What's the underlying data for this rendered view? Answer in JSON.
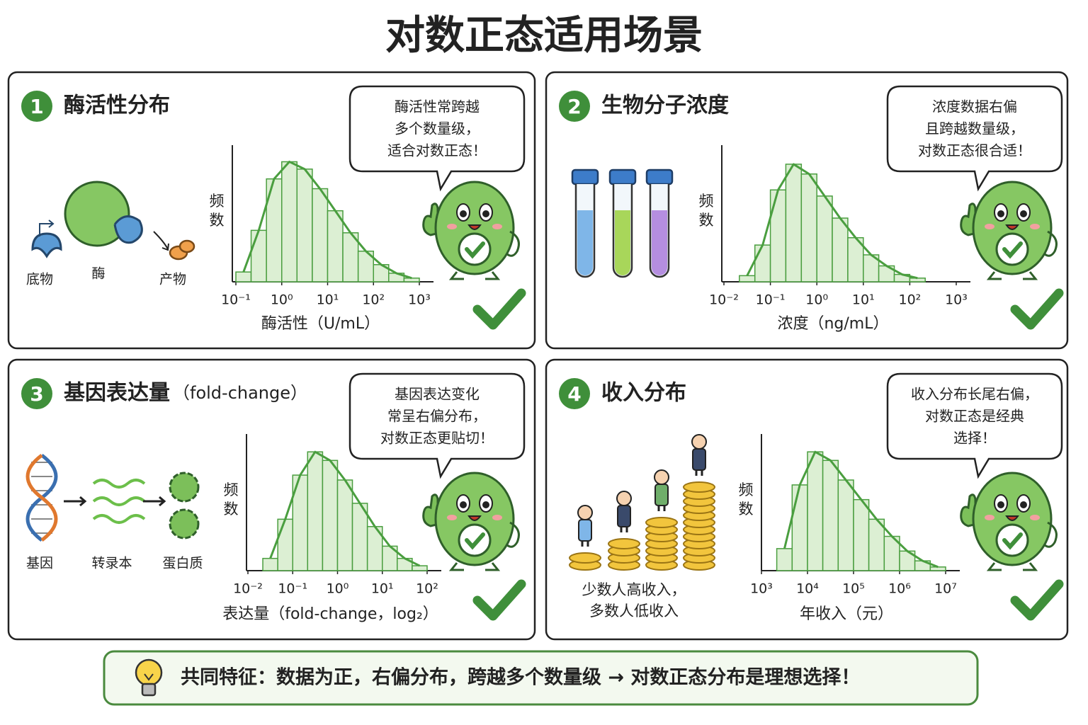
{
  "title": "对数正态适用场景",
  "panels": [
    {
      "number": 1,
      "title": "酶活性分布",
      "bubble": [
        "酶活性常跨越",
        "多个数量级，",
        "适合对数正态！"
      ],
      "labels": [
        "底物",
        "酶",
        "产物"
      ],
      "chart": {
        "type": "histogram",
        "ylabel": "频数",
        "xlabel": "酶活性（U/mL）",
        "xscale": "log",
        "color": "#4a9e3f",
        "xlim": [
          0.1,
          1000
        ],
        "ylim": [
          0,
          100
        ],
        "xticks": [
          {
            "value": 0.1,
            "label": "10⁻¹"
          },
          {
            "value": 1,
            "label": "10⁰"
          },
          {
            "value": 10,
            "label": "10¹"
          },
          {
            "value": 100,
            "label": "10²"
          },
          {
            "value": 1000,
            "label": "10³"
          }
        ],
        "bins": [
          0.1,
          0.215,
          0.464,
          1,
          2.15,
          4.64,
          10,
          21.5,
          46.4,
          100,
          215,
          464,
          1000
        ],
        "counts": [
          8,
          42,
          84,
          98,
          92,
          76,
          58,
          40,
          25,
          14,
          7,
          3
        ]
      }
    },
    {
      "number": 2,
      "title": "生物分子浓度",
      "bubble": [
        "浓度数据右偏",
        "且跨越数量级，",
        "对数正态很合适！"
      ],
      "chart": {
        "type": "histogram",
        "ylabel": "频数",
        "xlabel": "浓度（ng/mL）",
        "xscale": "log",
        "color": "#4a9e3f",
        "xlim": [
          0.01,
          1000
        ],
        "ylim": [
          0,
          100
        ],
        "xticks": [
          {
            "value": 0.01,
            "label": "10⁻²"
          },
          {
            "value": 0.1,
            "label": "10⁻¹"
          },
          {
            "value": 1,
            "label": "10⁰"
          },
          {
            "value": 10,
            "label": "10¹"
          },
          {
            "value": 100,
            "label": "10²"
          },
          {
            "value": 1000,
            "label": "10³"
          }
        ],
        "bins": [
          0.0215,
          0.0464,
          0.1,
          0.215,
          0.464,
          1,
          2.15,
          4.64,
          10,
          21.5,
          46.4,
          100,
          215
        ],
        "counts": [
          5,
          30,
          75,
          96,
          88,
          70,
          52,
          36,
          22,
          13,
          6,
          3
        ]
      }
    },
    {
      "number": 3,
      "title": "基因表达量",
      "title_note": "（fold-change）",
      "bubble": [
        "基因表达变化",
        "常呈右偏分布，",
        "对数正态更贴切！"
      ],
      "labels": [
        "基因",
        "转录本",
        "蛋白质"
      ],
      "chart": {
        "type": "histogram",
        "ylabel": "频数",
        "xlabel": "表达量（fold-change，log₂）",
        "xscale": "log",
        "color": "#4a9e3f",
        "xlim": [
          0.01,
          100
        ],
        "ylim": [
          0,
          100
        ],
        "xticks": [
          {
            "value": 0.01,
            "label": "10⁻²"
          },
          {
            "value": 0.1,
            "label": "10⁻¹"
          },
          {
            "value": 1,
            "label": "10⁰"
          },
          {
            "value": 10,
            "label": "10¹"
          },
          {
            "value": 100,
            "label": "10²"
          }
        ],
        "bins": [
          0.0215,
          0.0464,
          0.1,
          0.215,
          0.464,
          1,
          2.15,
          4.64,
          10,
          21.5,
          46.4,
          100
        ],
        "counts": [
          10,
          42,
          78,
          97,
          90,
          74,
          55,
          36,
          20,
          10,
          4
        ]
      }
    },
    {
      "number": 4,
      "title": "收入分布",
      "bubble": [
        "收入分布长尾右偏，",
        "对数正态是经典",
        "选择！"
      ],
      "labels": [
        "少数人高收入，",
        "多数人低收入"
      ],
      "chart": {
        "type": "histogram",
        "ylabel": "频数",
        "xlabel": "年收入（元）",
        "xscale": "log",
        "color": "#4a9e3f",
        "xlim": [
          1000,
          10000000
        ],
        "ylim": [
          0,
          100
        ],
        "xticks": [
          {
            "value": 1000,
            "label": "10³"
          },
          {
            "value": 10000,
            "label": "10⁴"
          },
          {
            "value": 100000,
            "label": "10⁵"
          },
          {
            "value": 1000000,
            "label": "10⁶"
          },
          {
            "value": 10000000,
            "label": "10⁷"
          }
        ],
        "bins": [
          2150,
          4640,
          10000,
          21500,
          46400,
          100000,
          215000,
          464000,
          1000000,
          2150000,
          4640000,
          10000000
        ],
        "counts": [
          18,
          70,
          97,
          90,
          74,
          58,
          42,
          28,
          16,
          8,
          3
        ]
      }
    }
  ],
  "footer": "共同特征：数据为正，右偏分布，跨越多个数量级 → 对数正态分布是理想选择！"
}
